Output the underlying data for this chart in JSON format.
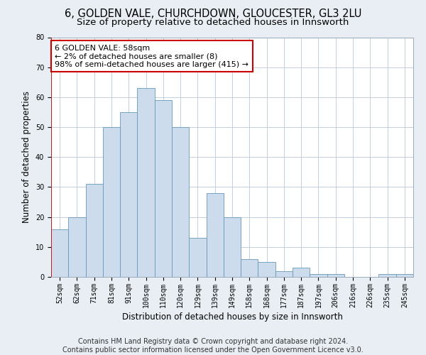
{
  "title": "6, GOLDEN VALE, CHURCHDOWN, GLOUCESTER, GL3 2LU",
  "subtitle": "Size of property relative to detached houses in Innsworth",
  "xlabel": "Distribution of detached houses by size in Innsworth",
  "ylabel": "Number of detached properties",
  "categories": [
    "52sqm",
    "62sqm",
    "71sqm",
    "81sqm",
    "91sqm",
    "100sqm",
    "110sqm",
    "120sqm",
    "129sqm",
    "139sqm",
    "149sqm",
    "158sqm",
    "168sqm",
    "177sqm",
    "187sqm",
    "197sqm",
    "206sqm",
    "216sqm",
    "226sqm",
    "235sqm",
    "245sqm"
  ],
  "values": [
    16,
    20,
    31,
    50,
    55,
    63,
    59,
    50,
    13,
    28,
    20,
    6,
    5,
    2,
    3,
    1,
    1,
    0,
    0,
    1,
    1
  ],
  "bar_color": "#ccdcec",
  "bar_edge_color": "#6699bb",
  "highlight_line_color": "#cc0000",
  "annotation_text": "6 GOLDEN VALE: 58sqm\n← 2% of detached houses are smaller (8)\n98% of semi-detached houses are larger (415) →",
  "annotation_box_color": "#ffffff",
  "annotation_box_edge_color": "#cc0000",
  "ylim": [
    0,
    80
  ],
  "yticks": [
    0,
    10,
    20,
    30,
    40,
    50,
    60,
    70,
    80
  ],
  "footer_line1": "Contains HM Land Registry data © Crown copyright and database right 2024.",
  "footer_line2": "Contains public sector information licensed under the Open Government Licence v3.0.",
  "bg_color": "#e8eef4",
  "plot_bg_color": "#ffffff",
  "title_fontsize": 10.5,
  "subtitle_fontsize": 9.5,
  "tick_fontsize": 7,
  "ylabel_fontsize": 8.5,
  "xlabel_fontsize": 8.5,
  "footer_fontsize": 7
}
